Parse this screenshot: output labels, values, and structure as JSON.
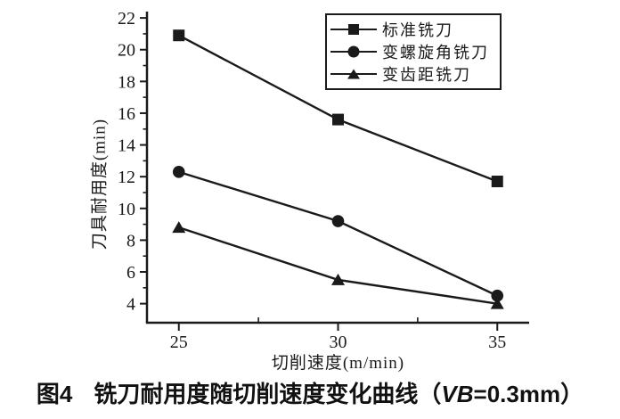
{
  "figure": {
    "caption": {
      "figure_label": "图4",
      "title": "铣刀耐用度随切削速度变化曲线（",
      "vb": "VB",
      "suffix": "=0.3mm）"
    }
  },
  "chart_data": {
    "type": "line",
    "title": "",
    "xlabel": "切削速度(m/min)",
    "ylabel": "刀具耐用度(min)",
    "x": [
      25,
      30,
      35
    ],
    "series": [
      {
        "name": "标准铣刀",
        "marker": "square",
        "values": [
          20.9,
          15.6,
          11.7
        ]
      },
      {
        "name": "变螺旋角铣刀",
        "marker": "circle",
        "values": [
          12.3,
          9.2,
          4.5
        ]
      },
      {
        "name": "变齿距铣刀",
        "marker": "triangle",
        "values": [
          8.8,
          5.5,
          4.0
        ]
      }
    ],
    "xlim": [
      24,
      36
    ],
    "ylim": [
      2.8,
      22.4
    ],
    "x_ticks": [
      25,
      30,
      35
    ],
    "x_minor_ticks": [
      27.5,
      32.5
    ],
    "y_ticks": [
      4,
      6,
      8,
      10,
      12,
      14,
      16,
      18,
      20,
      22
    ],
    "y_minor_ticks": [
      5,
      7,
      9,
      11,
      13,
      15,
      17,
      19,
      21
    ],
    "line_color": "#1a1a1a",
    "grid": false,
    "legend_position": "top-right-inside"
  }
}
